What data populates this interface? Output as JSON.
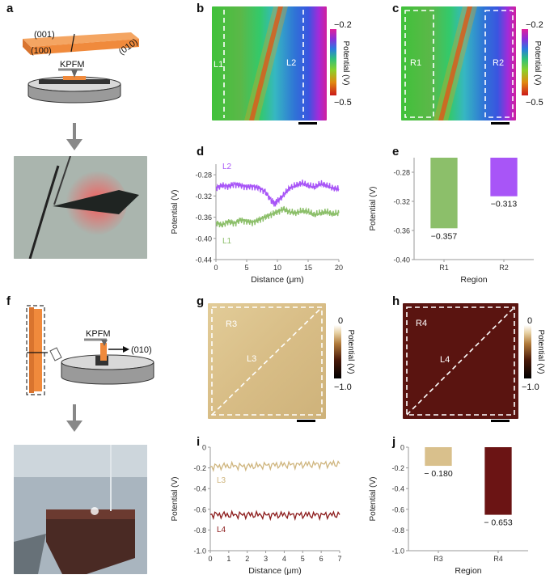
{
  "panel_labels": {
    "a": "a",
    "b": "b",
    "c": "c",
    "d": "d",
    "e": "e",
    "f": "f",
    "g": "g",
    "h": "h",
    "i": "i",
    "j": "j"
  },
  "schematic_a": {
    "face_top": "(001)",
    "face_left": "(100)",
    "face_right": "(010)",
    "probe_label": "KPFM"
  },
  "schematic_f": {
    "probe_label": "KPFM",
    "direction_label": "(010)"
  },
  "map_b": {
    "left_line": "L1",
    "right_line": "L2"
  },
  "map_c": {
    "left_region": "R1",
    "right_region": "R2"
  },
  "colorbar_bc": {
    "max": "−0.2",
    "min": "−0.5",
    "label": "Potential (V)"
  },
  "map_g": {
    "region": "R3",
    "line": "L3"
  },
  "map_h": {
    "region": "R4",
    "line": "L4"
  },
  "colorbar_g": {
    "max": "0",
    "min": "−1.0",
    "label": "Potential (V)"
  },
  "colorbar_h": {
    "max": "0",
    "min": "−1.0",
    "label": "Potential (V)"
  },
  "colors": {
    "orange": "#f08a3c",
    "purple": "#a855f7",
    "green": "#8cbf6a",
    "tan": "#d9c08c",
    "darkred": "#6b1414",
    "tanline": "#cfb57e",
    "darkredline": "#8b1a1a"
  },
  "chart_data": [
    {
      "id": "d",
      "type": "line",
      "xlabel": "Distance (μm)",
      "ylabel": "Potential (V)",
      "xlim": [
        0,
        20
      ],
      "ylim": [
        -0.44,
        -0.26
      ],
      "xticks": [
        "0",
        "5",
        "10",
        "15",
        "20"
      ],
      "yticks": [
        "-0.28",
        "-0.32",
        "-0.36",
        "-0.40",
        "-0.44"
      ],
      "series": [
        {
          "name": "L2",
          "x": [
            0,
            1,
            2,
            3,
            4,
            5,
            6,
            7,
            8,
            9,
            9.5,
            10,
            11,
            12,
            13,
            14,
            15,
            16,
            17,
            18,
            19,
            20
          ],
          "values": [
            -0.305,
            -0.3,
            -0.302,
            -0.298,
            -0.3,
            -0.303,
            -0.302,
            -0.305,
            -0.312,
            -0.328,
            -0.335,
            -0.33,
            -0.318,
            -0.305,
            -0.3,
            -0.296,
            -0.3,
            -0.303,
            -0.297,
            -0.3,
            -0.305,
            -0.307
          ]
        },
        {
          "name": "L1",
          "x": [
            0,
            1,
            2,
            3,
            4,
            5,
            6,
            7,
            8,
            9,
            10,
            11,
            12,
            13,
            14,
            15,
            16,
            17,
            18,
            19,
            20
          ],
          "values": [
            -0.37,
            -0.375,
            -0.368,
            -0.372,
            -0.365,
            -0.368,
            -0.37,
            -0.365,
            -0.36,
            -0.355,
            -0.35,
            -0.345,
            -0.35,
            -0.352,
            -0.348,
            -0.35,
            -0.355,
            -0.352,
            -0.35,
            -0.354,
            -0.352
          ]
        }
      ]
    },
    {
      "id": "e",
      "type": "bar",
      "xlabel": "Region",
      "ylabel": "Potential (V)",
      "categories": [
        "R1",
        "R2"
      ],
      "values": [
        -0.357,
        -0.313
      ],
      "value_labels": [
        "−0.357",
        "−0.313"
      ],
      "ylim": [
        -0.4,
        -0.26
      ],
      "yticks": [
        "-0.28",
        "-0.32",
        "-0.36",
        "-0.40"
      ]
    },
    {
      "id": "i",
      "type": "line",
      "xlabel": "Distance (μm)",
      "ylabel": "Potential (V)",
      "xlim": [
        0,
        7
      ],
      "ylim": [
        -1.0,
        0
      ],
      "xticks": [
        "0",
        "1",
        "2",
        "3",
        "4",
        "5",
        "6",
        "7"
      ],
      "yticks": [
        "0",
        "-0.2",
        "-0.4",
        "-0.6",
        "-0.8",
        "-1.0"
      ],
      "series": [
        {
          "name": "L3",
          "x": [
            0,
            1,
            2,
            3,
            4,
            5,
            6,
            7
          ],
          "values": [
            -0.19,
            -0.18,
            -0.185,
            -0.175,
            -0.17,
            -0.168,
            -0.165,
            -0.16
          ]
        },
        {
          "name": "L4",
          "x": [
            0,
            1,
            2,
            3,
            4,
            5,
            6,
            7
          ],
          "values": [
            -0.65,
            -0.655,
            -0.652,
            -0.656,
            -0.653,
            -0.654,
            -0.655,
            -0.652
          ]
        }
      ]
    },
    {
      "id": "j",
      "type": "bar",
      "xlabel": "Region",
      "ylabel": "Potential (V)",
      "categories": [
        "R3",
        "R4"
      ],
      "values": [
        -0.18,
        -0.653
      ],
      "value_labels": [
        "− 0.180",
        "− 0.653"
      ],
      "ylim": [
        -1.0,
        0
      ],
      "yticks": [
        "0",
        "-0.2",
        "-0.4",
        "-0.6",
        "-0.8",
        "-1.0"
      ]
    }
  ]
}
